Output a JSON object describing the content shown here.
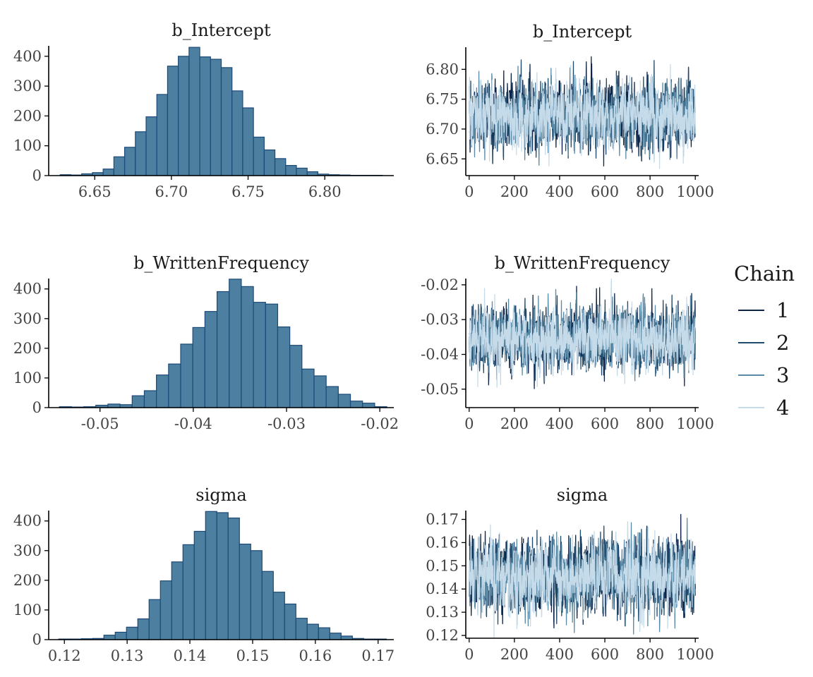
{
  "legend": {
    "title": "Chain",
    "items": [
      {
        "label": "1",
        "color": "#0d2449"
      },
      {
        "label": "2",
        "color": "#1f4a6b"
      },
      {
        "label": "3",
        "color": "#5a8aa6"
      },
      {
        "label": "4",
        "color": "#c6dbea"
      }
    ]
  },
  "colors": {
    "hist_fill": "#4d7fa0",
    "hist_edge": "#1c4a78",
    "axis": "#000000"
  },
  "chart_data": [
    {
      "type": "bar",
      "subtype": "histogram",
      "title": "b_Intercept",
      "bin_centers": [
        6.631,
        6.638,
        6.645,
        6.652,
        6.659,
        6.666,
        6.673,
        6.68,
        6.687,
        6.694,
        6.701,
        6.708,
        6.715,
        6.722,
        6.729,
        6.736,
        6.743,
        6.75,
        6.757,
        6.764,
        6.771,
        6.778,
        6.785,
        6.792,
        6.799,
        6.806,
        6.813,
        6.82,
        6.827,
        6.834
      ],
      "bin_width": 0.007,
      "values": [
        3,
        2,
        6,
        10,
        22,
        63,
        95,
        147,
        197,
        272,
        367,
        400,
        430,
        398,
        390,
        362,
        284,
        227,
        129,
        86,
        57,
        34,
        25,
        13,
        5,
        3,
        2,
        1,
        1,
        1
      ],
      "xlim": [
        6.62,
        6.845
      ],
      "ylim": [
        0,
        435
      ],
      "xticks": [
        6.65,
        6.7,
        6.75,
        6.8
      ],
      "xtick_labels": [
        "6.65",
        "6.70",
        "6.75",
        "6.80"
      ],
      "yticks": [
        0,
        100,
        200,
        300,
        400
      ],
      "ytick_labels": [
        "0",
        "100",
        "200",
        "300",
        "400"
      ]
    },
    {
      "type": "line",
      "subtype": "trace",
      "title": "b_Intercept",
      "iterations": 1000,
      "center": 6.722,
      "sd": 0.026,
      "xlim": [
        -15,
        1015
      ],
      "ylim": [
        6.622,
        6.837
      ],
      "xticks": [
        0,
        200,
        400,
        600,
        800,
        1000
      ],
      "xtick_labels": [
        "0",
        "200",
        "400",
        "600",
        "800",
        "1000"
      ],
      "yticks": [
        6.65,
        6.7,
        6.75,
        6.8
      ],
      "ytick_labels": [
        "6.65",
        "6.70",
        "6.75",
        "6.80"
      ],
      "series": [
        {
          "name": "1",
          "seed": 11
        },
        {
          "name": "2",
          "seed": 23
        },
        {
          "name": "3",
          "seed": 37
        },
        {
          "name": "4",
          "seed": 53
        }
      ]
    },
    {
      "type": "bar",
      "subtype": "histogram",
      "title": "b_WrittenFrequency",
      "bin_centers": [
        -0.0537,
        -0.0524,
        -0.0511,
        -0.0498,
        -0.0485,
        -0.0472,
        -0.0459,
        -0.0446,
        -0.0433,
        -0.042,
        -0.0407,
        -0.0394,
        -0.0381,
        -0.0368,
        -0.0355,
        -0.0342,
        -0.0329,
        -0.0316,
        -0.0303,
        -0.029,
        -0.0277,
        -0.0264,
        -0.0251,
        -0.0238,
        -0.0225,
        -0.0212,
        -0.0199
      ],
      "bin_width": 0.0013,
      "values": [
        3,
        2,
        3,
        8,
        12,
        10,
        40,
        57,
        110,
        147,
        214,
        270,
        324,
        391,
        433,
        408,
        355,
        349,
        272,
        210,
        130,
        107,
        71,
        45,
        22,
        15,
        3
      ],
      "xlim": [
        -0.0555,
        -0.0185
      ],
      "ylim": [
        0,
        435
      ],
      "xticks": [
        -0.05,
        -0.04,
        -0.03,
        -0.02
      ],
      "xtick_labels": [
        "-0.05",
        "-0.04",
        "-0.03",
        "-0.02"
      ],
      "yticks": [
        0,
        100,
        200,
        300,
        400
      ],
      "ytick_labels": [
        "0",
        "100",
        "200",
        "300",
        "400"
      ]
    },
    {
      "type": "line",
      "subtype": "trace",
      "title": "b_WrittenFrequency",
      "iterations": 1000,
      "center": -0.0355,
      "sd": 0.0044,
      "xlim": [
        -15,
        1015
      ],
      "ylim": [
        -0.0553,
        -0.0182
      ],
      "xticks": [
        0,
        200,
        400,
        600,
        800,
        1000
      ],
      "xtick_labels": [
        "0",
        "200",
        "400",
        "600",
        "800",
        "1000"
      ],
      "yticks": [
        -0.05,
        -0.04,
        -0.03,
        -0.02
      ],
      "ytick_labels": [
        "-0.05",
        "-0.04",
        "-0.03",
        "-0.02"
      ],
      "series": [
        {
          "name": "1",
          "seed": 71
        },
        {
          "name": "2",
          "seed": 83
        },
        {
          "name": "3",
          "seed": 97
        },
        {
          "name": "4",
          "seed": 109
        }
      ]
    },
    {
      "type": "bar",
      "subtype": "histogram",
      "title": "sigma",
      "bin_centers": [
        0.12,
        0.1218,
        0.1236,
        0.1254,
        0.1272,
        0.129,
        0.1308,
        0.1326,
        0.1344,
        0.1362,
        0.138,
        0.1398,
        0.1416,
        0.1434,
        0.1452,
        0.147,
        0.1488,
        0.1506,
        0.1524,
        0.1542,
        0.156,
        0.1578,
        0.1596,
        0.1614,
        0.1632,
        0.165,
        0.1668,
        0.1686,
        0.1704
      ],
      "bin_width": 0.0018,
      "values": [
        2,
        2,
        3,
        4,
        15,
        25,
        42,
        70,
        135,
        198,
        262,
        320,
        365,
        432,
        428,
        410,
        322,
        300,
        230,
        160,
        120,
        72,
        52,
        40,
        22,
        12,
        4,
        2,
        2
      ],
      "xlim": [
        0.1175,
        0.1725
      ],
      "ylim": [
        0,
        435
      ],
      "xticks": [
        0.12,
        0.13,
        0.14,
        0.15,
        0.16,
        0.17
      ],
      "xtick_labels": [
        "0.12",
        "0.13",
        "0.14",
        "0.15",
        "0.16",
        "0.17"
      ],
      "yticks": [
        0,
        100,
        200,
        300,
        400
      ],
      "ytick_labels": [
        "0",
        "100",
        "200",
        "300",
        "400"
      ]
    },
    {
      "type": "line",
      "subtype": "trace",
      "title": "sigma",
      "iterations": 1000,
      "center": 0.1455,
      "sd": 0.0075,
      "xlim": [
        -15,
        1015
      ],
      "ylim": [
        0.1188,
        0.1738
      ],
      "xticks": [
        0,
        200,
        400,
        600,
        800,
        1000
      ],
      "xtick_labels": [
        "0",
        "200",
        "400",
        "600",
        "800",
        "1000"
      ],
      "yticks": [
        0.12,
        0.13,
        0.14,
        0.15,
        0.16,
        0.17
      ],
      "ytick_labels": [
        "0.12",
        "0.13",
        "0.14",
        "0.15",
        "0.16",
        "0.17"
      ],
      "series": [
        {
          "name": "1",
          "seed": 131
        },
        {
          "name": "2",
          "seed": 149
        },
        {
          "name": "3",
          "seed": 163
        },
        {
          "name": "4",
          "seed": 179
        }
      ]
    }
  ]
}
